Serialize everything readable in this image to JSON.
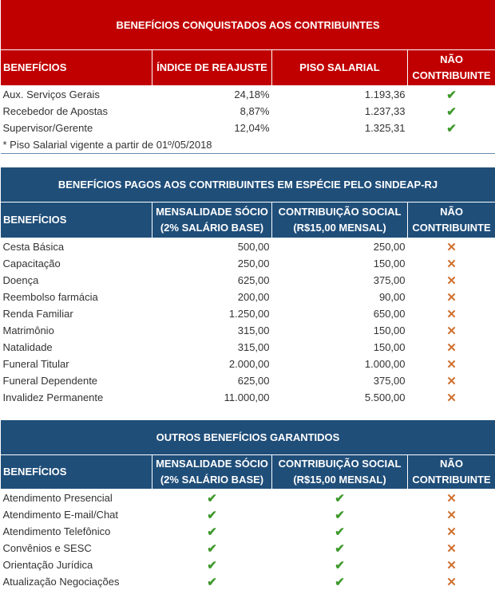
{
  "table1": {
    "title": "BENEFÍCIOS CONQUISTADOS AOS CONTRIBUINTES",
    "header": [
      "BENEFÍCIOS",
      "ÍNDICE DE REAJUSTE",
      "PISO SALARIAL",
      "NÃO\nCONTRIBUINTE"
    ],
    "rows": [
      [
        "Aux. Serviços Gerais",
        "24,18%",
        "1.193,36",
        "✔"
      ],
      [
        "Recebedor de Apostas",
        "8,87%",
        "1.237,33",
        "✔"
      ],
      [
        "Supervisor/Gerente",
        "12,04%",
        "1.325,31",
        "✔"
      ]
    ],
    "note": "* Piso Salarial vigente a partir de 01º/05/2018"
  },
  "table2": {
    "title": "BENEFÍCIOS PAGOS AOS CONTRIBUINTES EM ESPÉCIE PELO SINDEAP-RJ",
    "header": [
      "BENEFÍCIOS",
      "MENSALIDADE SÓCIO\n(2% SALÁRIO BASE)",
      "CONTRIBUIÇÃO SOCIAL\n(R$15,00 MENSAL)",
      "NÃO\nCONTRIBUINTE"
    ],
    "rows": [
      [
        "Cesta Básica",
        "500,00",
        "250,00",
        "✕"
      ],
      [
        "Capacitação",
        "250,00",
        "150,00",
        "✕"
      ],
      [
        "Doença",
        "625,00",
        "375,00",
        "✕"
      ],
      [
        "Reembolso farmácia",
        "200,00",
        "90,00",
        "✕"
      ],
      [
        "Renda Familiar",
        "1.250,00",
        "650,00",
        "✕"
      ],
      [
        "Matrimônio",
        "315,00",
        "150,00",
        "✕"
      ],
      [
        "Natalidade",
        "315,00",
        "150,00",
        "✕"
      ],
      [
        "Funeral Titular",
        "2.000,00",
        "1.000,00",
        "✕"
      ],
      [
        "Funeral Dependente",
        "625,00",
        "375,00",
        "✕"
      ],
      [
        "Invalidez Permanente",
        "11.000,00",
        "5.500,00",
        "✕"
      ]
    ]
  },
  "table3": {
    "title": "OUTROS BENEFÍCIOS GARANTIDOS",
    "header": [
      "BENEFÍCIOS",
      "MENSALIDADE SÓCIO\n(2% SALÁRIO BASE)",
      "CONTRIBUIÇÃO SOCIAL\n(R$15,00 MENSAL)",
      "NÃO\nCONTRIBUINTE"
    ],
    "rows": [
      [
        "Atendimento Presencial",
        "✔",
        "✔",
        "✕"
      ],
      [
        "Atendimento E-mail/Chat",
        "✔",
        "✔",
        "✕"
      ],
      [
        "Atendimento Telefônico",
        "✔",
        "✔",
        "✕"
      ],
      [
        "Convênios e SESC",
        "✔",
        "✔",
        "✕"
      ],
      [
        "Orientação Jurídica",
        "✔",
        "✔",
        "✕"
      ],
      [
        "Atualização Negociações",
        "✔",
        "✔",
        "✕"
      ]
    ]
  }
}
